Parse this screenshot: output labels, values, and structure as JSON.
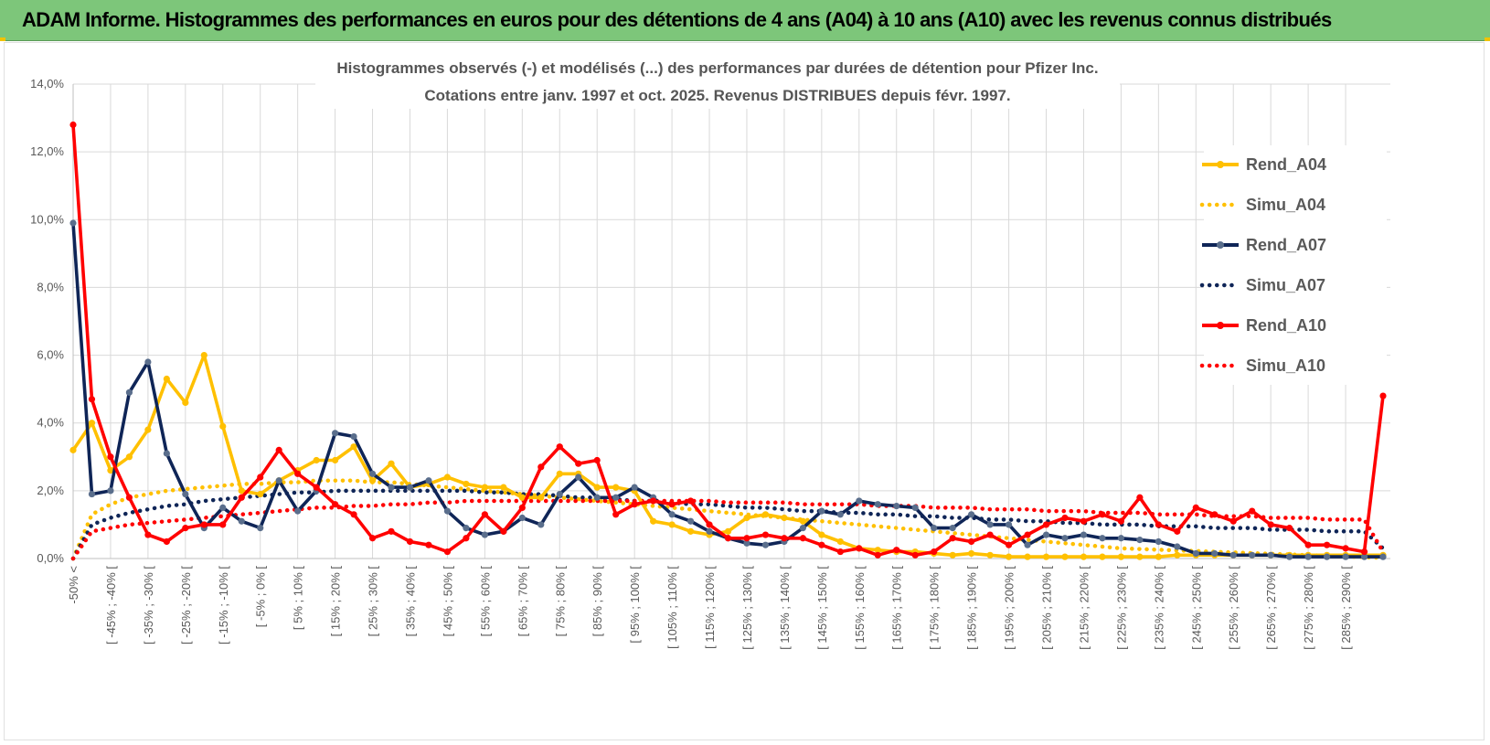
{
  "banner": {
    "title": "ADAM Informe. Histogrammes des performances en euros pour des détentions de 4 ans (A04) à 10 ans (A10) avec les revenus connus distribués"
  },
  "colors": {
    "banner_bg": "#7dc67a",
    "A04": "#ffc000",
    "A07": "#0f2557",
    "A10": "#ff0000",
    "grid": "#d9d9d9"
  },
  "chart_data": {
    "type": "line",
    "title_lines": [
      "Histogrammes observés (-) et modélisés (...) des performances par durées de détention pour Pfizer Inc.",
      "Cotations entre janv. 1997 et oct. 2025. Revenus DISTRIBUES depuis févr. 1997."
    ],
    "ylim": [
      0,
      14
    ],
    "y_ticks": [
      "0,0%",
      "2,0%",
      "4,0%",
      "6,0%",
      "8,0%",
      "10,0%",
      "12,0%",
      "14,0%"
    ],
    "x_labels": [
      "-50% <",
      "[ -45% ; -40% [",
      "[ -35% ; -30% [",
      "[ -25% ; -20% [",
      "[ -15% ; -10% [",
      "[ -5% ; 0% [",
      "[ 5% ; 10% [",
      "[ 15% ; 20% [",
      "[ 25% ; 30% [",
      "[ 35% ; 40% [",
      "[ 45% ; 50% [",
      "[ 55% ; 60% [",
      "[ 65% ; 70% [",
      "[ 75% ; 80% [",
      "[ 85% ; 90% [",
      "[ 95% ; 100% [",
      "[ 105% ; 110% [",
      "[ 115% ; 120% [",
      "[ 125% ; 130% [",
      "[ 135% ; 140% [",
      "[ 145% ; 150% [",
      "[ 155% ; 160% [",
      "[ 165% ; 170% [",
      "[ 175% ; 180% [",
      "[ 185% ; 190% [",
      "[ 195% ; 200% [",
      "[ 205% ; 210% [",
      "[ 215% ; 220% [",
      "[ 225% ; 230% [",
      "[ 235% ; 240% [",
      "[ 245% ; 250% [",
      "[ 255% ; 260% [",
      "[ 265% ; 270% [",
      "[ 275% ; 280% [",
      "[ 285% ; 290% ["
    ],
    "n_points": 71,
    "series": [
      {
        "name": "Rend_A04",
        "style": "solid",
        "color": "#ffc000",
        "values": [
          3.2,
          4.0,
          2.6,
          3.0,
          3.8,
          5.3,
          4.6,
          6.0,
          3.9,
          2.0,
          1.9,
          2.3,
          2.6,
          2.9,
          2.9,
          3.3,
          2.3,
          2.8,
          2.1,
          2.2,
          2.4,
          2.2,
          2.1,
          2.1,
          1.8,
          1.8,
          2.5,
          2.5,
          2.1,
          2.1,
          2.0,
          1.1,
          1.0,
          0.8,
          0.7,
          0.8,
          1.2,
          1.3,
          1.2,
          1.1,
          0.7,
          0.5,
          0.3,
          0.25,
          0.2,
          0.2,
          0.15,
          0.1,
          0.15,
          0.1,
          0.05,
          0.05,
          0.05,
          0.05,
          0.05,
          0.05,
          0.05,
          0.05,
          0.05,
          0.1,
          0.1,
          0.1,
          0.1,
          0.1,
          0.1,
          0.1,
          0.1,
          0.1,
          0.1,
          0.1,
          0.1
        ]
      },
      {
        "name": "Simu_A04",
        "style": "dotted",
        "color": "#ffc000",
        "values": [
          0.0,
          1.3,
          1.6,
          1.8,
          1.9,
          2.0,
          2.05,
          2.1,
          2.15,
          2.2,
          2.2,
          2.25,
          2.25,
          2.3,
          2.3,
          2.3,
          2.25,
          2.25,
          2.2,
          2.15,
          2.1,
          2.05,
          2.0,
          1.95,
          1.9,
          1.85,
          1.8,
          1.75,
          1.7,
          1.65,
          1.6,
          1.55,
          1.5,
          1.45,
          1.4,
          1.35,
          1.3,
          1.25,
          1.2,
          1.15,
          1.1,
          1.05,
          1.0,
          0.95,
          0.9,
          0.85,
          0.8,
          0.75,
          0.7,
          0.65,
          0.6,
          0.55,
          0.5,
          0.45,
          0.4,
          0.35,
          0.3,
          0.28,
          0.26,
          0.24,
          0.22,
          0.2,
          0.18,
          0.16,
          0.14,
          0.12,
          0.1,
          0.08,
          0.06,
          0.04,
          0.02
        ]
      },
      {
        "name": "Rend_A07",
        "style": "solid",
        "color": "#0f2557",
        "values": [
          9.9,
          1.9,
          2.0,
          4.9,
          5.8,
          3.1,
          1.9,
          0.9,
          1.5,
          1.1,
          0.9,
          2.3,
          1.4,
          2.0,
          3.7,
          3.6,
          2.5,
          2.1,
          2.1,
          2.3,
          1.4,
          0.9,
          0.7,
          0.8,
          1.2,
          1.0,
          1.9,
          2.4,
          1.8,
          1.8,
          2.1,
          1.8,
          1.3,
          1.1,
          0.8,
          0.6,
          0.45,
          0.4,
          0.5,
          0.9,
          1.4,
          1.3,
          1.7,
          1.6,
          1.55,
          1.5,
          0.9,
          0.9,
          1.3,
          1.0,
          1.0,
          0.4,
          0.7,
          0.6,
          0.7,
          0.6,
          0.6,
          0.55,
          0.5,
          0.35,
          0.15,
          0.15,
          0.1,
          0.1,
          0.1,
          0.05,
          0.05,
          0.05,
          0.05,
          0.05,
          0.05
        ]
      },
      {
        "name": "Simu_A07",
        "style": "dotted",
        "color": "#0f2557",
        "values": [
          0.0,
          1.0,
          1.2,
          1.35,
          1.45,
          1.55,
          1.6,
          1.7,
          1.75,
          1.8,
          1.85,
          1.9,
          1.95,
          1.95,
          2.0,
          2.0,
          2.0,
          2.0,
          2.0,
          2.0,
          2.0,
          2.0,
          1.95,
          1.95,
          1.9,
          1.9,
          1.85,
          1.8,
          1.8,
          1.75,
          1.7,
          1.7,
          1.65,
          1.6,
          1.6,
          1.55,
          1.5,
          1.5,
          1.45,
          1.4,
          1.4,
          1.35,
          1.35,
          1.3,
          1.3,
          1.25,
          1.25,
          1.2,
          1.2,
          1.15,
          1.15,
          1.1,
          1.1,
          1.05,
          1.05,
          1.0,
          1.0,
          1.0,
          0.95,
          0.95,
          0.95,
          0.9,
          0.9,
          0.9,
          0.85,
          0.85,
          0.85,
          0.8,
          0.8,
          0.8,
          0.3
        ]
      },
      {
        "name": "Rend_A10",
        "style": "solid",
        "color": "#ff0000",
        "values": [
          12.8,
          4.7,
          3.0,
          1.8,
          0.7,
          0.5,
          0.9,
          1.0,
          1.0,
          1.8,
          2.4,
          3.2,
          2.5,
          2.1,
          1.6,
          1.3,
          0.6,
          0.8,
          0.5,
          0.4,
          0.2,
          0.6,
          1.3,
          0.8,
          1.5,
          2.7,
          3.3,
          2.8,
          2.9,
          1.3,
          1.6,
          1.7,
          1.6,
          1.7,
          1.0,
          0.6,
          0.6,
          0.7,
          0.6,
          0.6,
          0.4,
          0.2,
          0.3,
          0.1,
          0.25,
          0.1,
          0.2,
          0.6,
          0.5,
          0.7,
          0.4,
          0.7,
          1.0,
          1.2,
          1.1,
          1.3,
          1.1,
          1.8,
          1.0,
          0.8,
          1.5,
          1.3,
          1.1,
          1.4,
          1.0,
          0.9,
          0.4,
          0.4,
          0.3,
          0.2,
          4.8
        ]
      },
      {
        "name": "Simu_A10",
        "style": "dotted",
        "color": "#ff0000",
        "values": [
          0.0,
          0.8,
          0.9,
          1.0,
          1.05,
          1.1,
          1.15,
          1.2,
          1.25,
          1.3,
          1.35,
          1.4,
          1.45,
          1.5,
          1.5,
          1.55,
          1.55,
          1.6,
          1.6,
          1.65,
          1.65,
          1.7,
          1.7,
          1.7,
          1.7,
          1.7,
          1.7,
          1.7,
          1.7,
          1.7,
          1.7,
          1.7,
          1.7,
          1.7,
          1.7,
          1.65,
          1.65,
          1.65,
          1.65,
          1.6,
          1.6,
          1.6,
          1.6,
          1.55,
          1.55,
          1.55,
          1.5,
          1.5,
          1.5,
          1.45,
          1.45,
          1.45,
          1.4,
          1.4,
          1.4,
          1.35,
          1.35,
          1.35,
          1.3,
          1.3,
          1.3,
          1.25,
          1.25,
          1.25,
          1.2,
          1.2,
          1.2,
          1.15,
          1.15,
          1.15,
          0.2
        ]
      }
    ],
    "legend": [
      "Rend_A04",
      "Simu_A04",
      "Rend_A07",
      "Simu_A07",
      "Rend_A10",
      "Simu_A10"
    ],
    "legend_position": "right"
  }
}
